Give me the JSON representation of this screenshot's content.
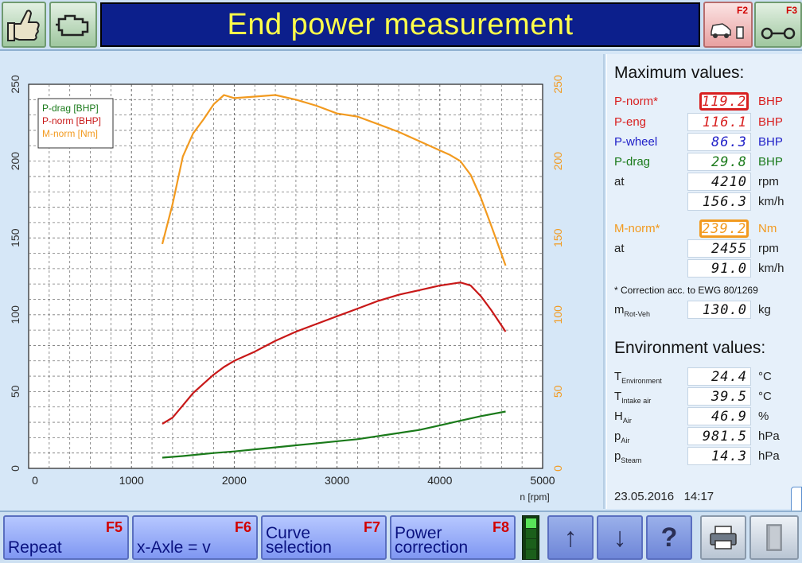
{
  "header": {
    "title": "End power measurement",
    "f2_label": "F2",
    "f3_label": "F3"
  },
  "icons": {
    "thumb": "thumbs-up-icon",
    "engine": "engine-icon",
    "car_ramp": "car-on-ramp-icon",
    "roller": "roller-icon",
    "up": "arrow-up-icon",
    "down": "arrow-down-icon",
    "help": "question-icon",
    "printer": "printer-icon",
    "exit": "door-icon"
  },
  "chart_data": {
    "type": "line",
    "xlabel": "n [rpm]",
    "ylabel": "",
    "xlim": [
      0,
      5000
    ],
    "ylim_left": [
      0,
      250
    ],
    "ylim_right": [
      0,
      250
    ],
    "grid": true,
    "legend_position": "top-left",
    "x_ticks": [
      "0",
      "1000",
      "2000",
      "3000",
      "4000",
      "5000"
    ],
    "y_ticks_left": [
      "0",
      "50",
      "100",
      "150",
      "200",
      "250"
    ],
    "y_ticks_right": [
      "0",
      "50",
      "100",
      "150",
      "200",
      "250"
    ],
    "series": [
      {
        "name": "P-drag [BHP]",
        "color": "#1a7a1a",
        "axis": "left",
        "points": [
          [
            1300,
            7
          ],
          [
            1500,
            8
          ],
          [
            1800,
            10
          ],
          [
            2000,
            11
          ],
          [
            2300,
            13
          ],
          [
            2600,
            15
          ],
          [
            2900,
            17
          ],
          [
            3200,
            19
          ],
          [
            3500,
            22
          ],
          [
            3800,
            25
          ],
          [
            4000,
            28
          ],
          [
            4200,
            31
          ],
          [
            4400,
            34
          ],
          [
            4640,
            37
          ]
        ]
      },
      {
        "name": "P-norm [BHP]",
        "color": "#c81818",
        "axis": "left",
        "points": [
          [
            1300,
            29
          ],
          [
            1400,
            33
          ],
          [
            1500,
            41
          ],
          [
            1600,
            49
          ],
          [
            1700,
            55
          ],
          [
            1800,
            61
          ],
          [
            1900,
            66
          ],
          [
            2000,
            70
          ],
          [
            2200,
            76
          ],
          [
            2400,
            83
          ],
          [
            2600,
            89
          ],
          [
            2800,
            94
          ],
          [
            3000,
            99
          ],
          [
            3200,
            104
          ],
          [
            3400,
            109
          ],
          [
            3600,
            113
          ],
          [
            3800,
            116
          ],
          [
            4000,
            119
          ],
          [
            4100,
            120
          ],
          [
            4200,
            121
          ],
          [
            4300,
            119
          ],
          [
            4400,
            112
          ],
          [
            4500,
            103
          ],
          [
            4640,
            89
          ]
        ]
      },
      {
        "name": "M-norm [Nm]",
        "color": "#f29a1f",
        "axis": "right",
        "points": [
          [
            1300,
            146
          ],
          [
            1400,
            172
          ],
          [
            1500,
            203
          ],
          [
            1600,
            218
          ],
          [
            1700,
            227
          ],
          [
            1800,
            237
          ],
          [
            1900,
            243
          ],
          [
            2000,
            241
          ],
          [
            2200,
            242
          ],
          [
            2400,
            243
          ],
          [
            2600,
            240
          ],
          [
            2800,
            236
          ],
          [
            3000,
            231
          ],
          [
            3200,
            229
          ],
          [
            3400,
            224
          ],
          [
            3600,
            219
          ],
          [
            3800,
            213
          ],
          [
            4000,
            207
          ],
          [
            4100,
            204
          ],
          [
            4200,
            200
          ],
          [
            4300,
            191
          ],
          [
            4400,
            176
          ],
          [
            4500,
            158
          ],
          [
            4640,
            132
          ]
        ]
      }
    ]
  },
  "max": {
    "title": "Maximum values:",
    "rows": [
      {
        "label": "P-norm*",
        "value": "119.2",
        "unit": "BHP"
      },
      {
        "label": "P-eng",
        "value": "116.1",
        "unit": "BHP"
      },
      {
        "label": "P-wheel",
        "value": "86.3",
        "unit": "BHP"
      },
      {
        "label": "P-drag",
        "value": "29.8",
        "unit": "BHP"
      },
      {
        "label": "at",
        "value": "4210",
        "unit": "rpm"
      },
      {
        "label": "",
        "value": "156.3",
        "unit": "km/h"
      },
      {
        "label": "M-norm*",
        "value": "239.2",
        "unit": "Nm"
      },
      {
        "label": "at",
        "value": "2455",
        "unit": "rpm"
      },
      {
        "label": "",
        "value": "91.0",
        "unit": "km/h"
      }
    ],
    "note": "* Correction acc. to EWG 80/1269",
    "mrot": {
      "label_main": "m",
      "label_sub": "Rot-Veh",
      "value": "130.0",
      "unit": "kg"
    }
  },
  "env": {
    "title": "Environment values:",
    "rows": [
      {
        "main": "T",
        "sub": "Environment",
        "value": "24.4",
        "unit": "°C"
      },
      {
        "main": "T",
        "sub": "Intake air",
        "value": "39.5",
        "unit": "°C"
      },
      {
        "main": "H",
        "sub": "Air",
        "value": "46.9",
        "unit": "%"
      },
      {
        "main": "p",
        "sub": "Air",
        "value": "981.5",
        "unit": "hPa"
      },
      {
        "main": "p",
        "sub": "Steam",
        "value": "14.3",
        "unit": "hPa"
      }
    ]
  },
  "timestamp": {
    "date": "23.05.2016",
    "time": "14:17"
  },
  "footer": {
    "buttons": [
      {
        "key": "F5",
        "label": "Repeat"
      },
      {
        "key": "F6",
        "label": "x-Axle = v"
      },
      {
        "key": "F7",
        "label": "Curve selection"
      },
      {
        "key": "F8",
        "label": "Power correction"
      }
    ]
  },
  "colors": {
    "red": "#d82020",
    "orange": "#f29a1f",
    "green": "#1a7a1a",
    "blue": "#2020c8"
  }
}
